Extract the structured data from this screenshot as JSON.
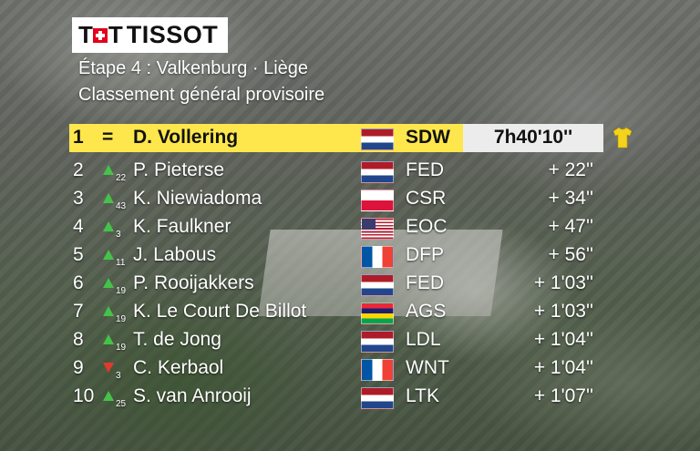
{
  "broadcast": {
    "sponsor": "TISSOT",
    "stage_title": "Étape 4 : Valkenburg · Liège",
    "subtitle": "Classement général provisoire"
  },
  "standings": [
    {
      "rank": "1",
      "change_symbol": "=",
      "name": "D. Vollering",
      "flag": "NL",
      "team": "SDW",
      "time": "7h40'10''",
      "leader": true,
      "jersey_icon": "yellow-jersey-icon"
    },
    {
      "rank": "2",
      "change_dir": "up",
      "change": "22",
      "name": "P. Pieterse",
      "flag": "NL",
      "team": "FED",
      "time": "+ 22''"
    },
    {
      "rank": "3",
      "change_dir": "up",
      "change": "43",
      "name": "K. Niewiadoma",
      "flag": "PL",
      "team": "CSR",
      "time": "+ 34''"
    },
    {
      "rank": "4",
      "change_dir": "up",
      "change": "3",
      "name": "K. Faulkner",
      "flag": "US",
      "team": "EOC",
      "time": "+ 47''"
    },
    {
      "rank": "5",
      "change_dir": "up",
      "change": "11",
      "name": "J. Labous",
      "flag": "FR",
      "team": "DFP",
      "time": "+ 56''"
    },
    {
      "rank": "6",
      "change_dir": "up",
      "change": "19",
      "name": "P. Rooijakkers",
      "flag": "NL",
      "team": "FED",
      "time": "+ 1'03''"
    },
    {
      "rank": "7",
      "change_dir": "up",
      "change": "19",
      "name": "K. Le Court De Billot",
      "flag": "MU",
      "team": "AGS",
      "time": "+ 1'03''"
    },
    {
      "rank": "8",
      "change_dir": "up",
      "change": "19",
      "name": "T. de Jong",
      "flag": "NL",
      "team": "LDL",
      "time": "+ 1'04''"
    },
    {
      "rank": "9",
      "change_dir": "down",
      "change": "3",
      "name": "C. Kerbaol",
      "flag": "FR",
      "team": "WNT",
      "time": "+ 1'04''"
    },
    {
      "rank": "10",
      "change_dir": "up",
      "change": "25",
      "name": "S. van Anrooij",
      "flag": "NL",
      "team": "LTK",
      "time": "+ 1'07''"
    }
  ],
  "colors": {
    "leader_bar": "#fde74c",
    "leader_time_box": "#ececec",
    "up_arrow": "#45c24a",
    "down_arrow": "#e03a2e",
    "jersey": "#f5d21c"
  }
}
